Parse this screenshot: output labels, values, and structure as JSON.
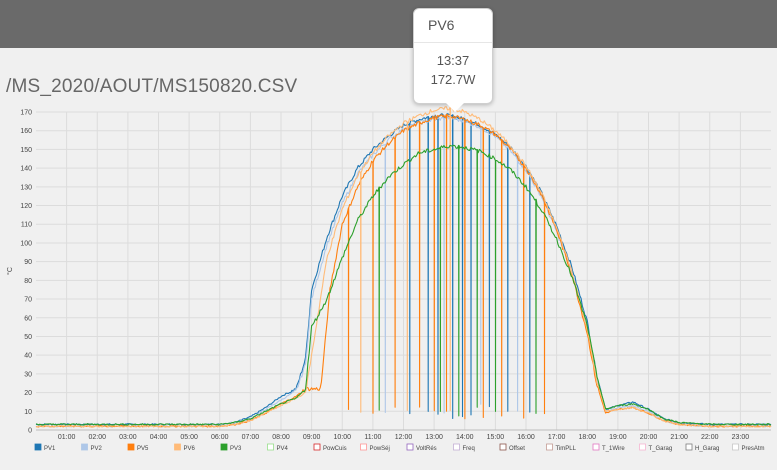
{
  "header": {
    "title": "/MS_2020/AOUT/MS150820.CSV"
  },
  "tooltip": {
    "series": "PV6",
    "time": "13:37",
    "value": "172.7W"
  },
  "chart_data": {
    "type": "line",
    "xlabel": "",
    "ylabel": "°C",
    "ylim": [
      0,
      170
    ],
    "xlim": [
      0,
      24
    ],
    "yticks": [
      0,
      10,
      20,
      30,
      40,
      50,
      60,
      70,
      80,
      90,
      100,
      110,
      120,
      130,
      140,
      150,
      160,
      170
    ],
    "xticks": [
      "01:00",
      "02:00",
      "03:00",
      "04:00",
      "05:00",
      "06:00",
      "07:00",
      "08:00",
      "09:00",
      "10:00",
      "11:00",
      "12:00",
      "13:00",
      "14:00",
      "15:00",
      "16:00",
      "17:00",
      "18:00",
      "19:00",
      "20:00",
      "21:00",
      "22:00",
      "23:00"
    ],
    "grid": true,
    "legend_position": "bottom",
    "legend": [
      {
        "name": "PV1",
        "color": "#1f77b4",
        "filled": true
      },
      {
        "name": "PV2",
        "color": "#aec7e8",
        "filled": true
      },
      {
        "name": "PV5",
        "color": "#ff7f0e",
        "filled": true
      },
      {
        "name": "PV6",
        "color": "#ffbb78",
        "filled": true
      },
      {
        "name": "PV3",
        "color": "#2ca02c",
        "filled": true
      },
      {
        "name": "PV4",
        "color": "#98df8a",
        "filled": false
      },
      {
        "name": "PowCuis",
        "color": "#d62728",
        "filled": false
      },
      {
        "name": "PowSéj",
        "color": "#ff9896",
        "filled": false
      },
      {
        "name": "VoltRés",
        "color": "#9467bd",
        "filled": false
      },
      {
        "name": "Freq",
        "color": "#c5b0d5",
        "filled": false
      },
      {
        "name": "Offset",
        "color": "#8c564b",
        "filled": false
      },
      {
        "name": "TimPLL",
        "color": "#c49c94",
        "filled": false
      },
      {
        "name": "T_1Wire",
        "color": "#e377c2",
        "filled": false
      },
      {
        "name": "T_Garag",
        "color": "#f7b6d2",
        "filled": false
      },
      {
        "name": "H_Garag",
        "color": "#7f7f7f",
        "filled": false
      },
      {
        "name": "PresAtm",
        "color": "#c7c7c7",
        "filled": false
      }
    ],
    "series": [
      {
        "name": "PV1",
        "color": "#1f77b4",
        "x": [
          0,
          1,
          2,
          3,
          4,
          5,
          6,
          6.5,
          7,
          7.5,
          8,
          8.5,
          8.8,
          9,
          9.5,
          10,
          10.5,
          11,
          11.5,
          12,
          12.5,
          13,
          13.5,
          14,
          14.5,
          15,
          15.5,
          16,
          16.5,
          17,
          17.5,
          18,
          18.3,
          18.6,
          19,
          19.5,
          20,
          20.5,
          21,
          22,
          23,
          24
        ],
        "y": [
          3,
          3,
          3,
          3,
          3,
          3,
          3,
          4,
          7,
          12,
          18,
          22,
          38,
          75,
          103,
          125,
          140,
          150,
          157,
          163,
          166,
          168,
          168,
          166,
          163,
          158,
          151,
          141,
          127,
          109,
          87,
          58,
          30,
          11,
          13,
          15,
          11,
          6,
          4,
          3,
          3,
          3
        ],
        "drops": [
          12.2,
          12.8,
          13.1,
          13.6,
          13.9,
          14.2,
          14.8,
          15.4,
          16.1
        ]
      },
      {
        "name": "PV2",
        "color": "#aec7e8",
        "x": [
          0,
          1,
          2,
          3,
          4,
          5,
          6,
          6.5,
          7,
          7.5,
          8,
          8.5,
          8.8,
          9,
          9.5,
          10,
          10.5,
          11,
          11.5,
          12,
          12.5,
          13,
          13.5,
          14,
          14.5,
          15,
          15.5,
          16,
          16.5,
          17,
          17.5,
          18,
          18.3,
          18.6,
          19,
          19.5,
          20,
          20.5,
          21,
          22,
          23,
          24
        ],
        "y": [
          2,
          2,
          2,
          2,
          2,
          2,
          3,
          4,
          6,
          11,
          16,
          21,
          35,
          70,
          99,
          121,
          137,
          147,
          155,
          161,
          164,
          166,
          167,
          165,
          162,
          157,
          149,
          139,
          125,
          106,
          84,
          55,
          28,
          10,
          12,
          13,
          10,
          5,
          3,
          2,
          2,
          2
        ],
        "drops": [
          11.4,
          13.3,
          14.5,
          15.7
        ]
      },
      {
        "name": "PV5",
        "color": "#ff7f0e",
        "x": [
          0,
          1,
          2,
          3,
          4,
          5,
          6,
          6.5,
          7,
          7.5,
          8,
          8.5,
          8.8,
          9,
          9.3,
          9.6,
          10,
          10.5,
          11,
          11.5,
          12,
          12.5,
          13,
          13.5,
          14,
          14.5,
          15,
          15.5,
          16,
          16.5,
          17,
          17.5,
          18,
          18.3,
          18.6,
          19,
          19.5,
          20,
          20.5,
          21,
          22,
          23,
          24
        ],
        "y": [
          2,
          2,
          2,
          2,
          2,
          2,
          2,
          3,
          5,
          9,
          14,
          18,
          22,
          22,
          22,
          75,
          110,
          130,
          144,
          153,
          160,
          164,
          167,
          168,
          166,
          163,
          158,
          150,
          140,
          126,
          107,
          83,
          52,
          25,
          9,
          11,
          12,
          9,
          5,
          3,
          2,
          2,
          2
        ],
        "drops": [
          10.2,
          11.0,
          11.7,
          12.5,
          13.0,
          13.4,
          14.0,
          14.6,
          15.2,
          15.9,
          16.6
        ]
      },
      {
        "name": "PV6",
        "color": "#ffbb78",
        "x": [
          0,
          1,
          2,
          3,
          4,
          5,
          6,
          6.5,
          7,
          7.5,
          8,
          8.5,
          8.8,
          9,
          9.5,
          10,
          10.5,
          11,
          11.5,
          12,
          12.5,
          13,
          13.5,
          14,
          14.5,
          15,
          15.5,
          16,
          16.5,
          17,
          17.5,
          18,
          18.3,
          18.6,
          19,
          19.5,
          20,
          20.5,
          21,
          22,
          23,
          24
        ],
        "y": [
          2,
          2,
          2,
          2,
          2,
          2,
          2,
          3,
          5,
          9,
          13,
          17,
          20,
          40,
          92,
          118,
          136,
          148,
          157,
          164,
          168,
          171,
          172,
          170,
          166,
          160,
          152,
          141,
          127,
          108,
          85,
          54,
          27,
          10,
          11,
          12,
          9,
          5,
          3,
          2,
          2,
          2
        ],
        "drops": [
          10.6,
          12.1,
          13.5
        ]
      },
      {
        "name": "PV3",
        "color": "#2ca02c",
        "x": [
          0,
          1,
          2,
          3,
          4,
          5,
          6,
          6.5,
          7,
          7.5,
          8,
          8.5,
          8.8,
          9,
          9.5,
          10,
          10.5,
          11,
          11.5,
          12,
          12.5,
          13,
          13.5,
          14,
          14.5,
          15,
          15.5,
          16,
          16.5,
          17,
          17.5,
          18,
          18.3,
          18.6,
          19,
          19.5,
          20,
          20.5,
          21,
          22,
          23,
          24
        ],
        "y": [
          3,
          3,
          3,
          3,
          3,
          3,
          3,
          4,
          6,
          10,
          14,
          17,
          22,
          55,
          70,
          92,
          112,
          125,
          135,
          142,
          148,
          150,
          152,
          151,
          149,
          145,
          139,
          130,
          118,
          102,
          82,
          56,
          30,
          11,
          13,
          14,
          11,
          6,
          4,
          3,
          3,
          3
        ],
        "drops": [
          11.2,
          13.2,
          13.8,
          14.4,
          15.0,
          16.3
        ]
      }
    ]
  }
}
